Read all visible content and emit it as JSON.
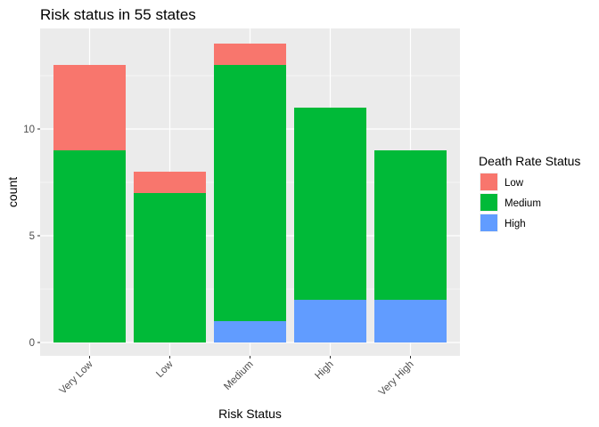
{
  "chart_data": {
    "type": "bar",
    "stacked": true,
    "title": "Risk status in 55 states",
    "xlabel": "Risk Status",
    "ylabel": "count",
    "categories": [
      "Very Low",
      "Low",
      "Medium",
      "High",
      "Very High"
    ],
    "yticks": [
      0,
      5,
      10
    ],
    "ylim": [
      0,
      14
    ],
    "legend_title": "Death Rate Status",
    "legend_position": "right",
    "grid": true,
    "series": [
      {
        "name": "High",
        "color": "#619cff",
        "values": [
          0,
          0,
          1,
          2,
          2
        ]
      },
      {
        "name": "Medium",
        "color": "#00ba38",
        "values": [
          9,
          7,
          12,
          9,
          7
        ]
      },
      {
        "name": "Low",
        "color": "#f8766d",
        "values": [
          4,
          1,
          1,
          0,
          0
        ]
      }
    ],
    "legend_order": [
      "Low",
      "Medium",
      "High"
    ]
  }
}
